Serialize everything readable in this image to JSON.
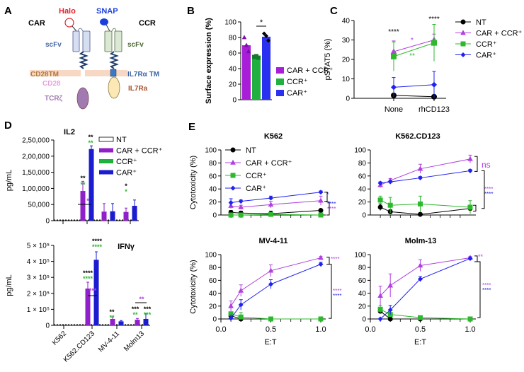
{
  "panel_labels": {
    "a": "A",
    "b": "B",
    "c": "C",
    "d": "D",
    "e": "E"
  },
  "diagram": {
    "halo": "Halo",
    "snap": "SNAP",
    "car": "CAR",
    "ccr": "CCR",
    "scfv_car": "scFv",
    "scfv_ccr": "scFv",
    "cd28tm": "CD28TM",
    "il7ra_tm": "IL7Rα TM",
    "cd28": "CD28",
    "il7ra": "IL7Ra",
    "tcrz": "TCRζ",
    "colors": {
      "halo": "#e8202a",
      "snap": "#1a3ee0",
      "scfv_car": "#4a6aa8",
      "scfv_ccr": "#4e6a3a",
      "cd28tm": "#b8783a",
      "il7ra_tm": "#3a64a8",
      "cd28": "#e8a0e0",
      "il7ra": "#a8502a",
      "tcrz": "#a07ab0"
    }
  },
  "chart_data": [
    {
      "id": "B",
      "type": "bar",
      "title": "",
      "ylabel": "Surface expression (%)",
      "xlabel": "",
      "ylim": [
        0,
        100
      ],
      "yticks": [
        0,
        20,
        40,
        60,
        80,
        100
      ],
      "yticklabels": [
        "0",
        "20",
        "40",
        "60",
        "80",
        "100"
      ],
      "categories": [
        "CAR + CCR⁺",
        "CCR⁺",
        "CAR⁺"
      ],
      "values": [
        70,
        55,
        81
      ],
      "points": [
        [
          80,
          70,
          62
        ],
        [
          55,
          56,
          54
        ],
        [
          85,
          82,
          76
        ]
      ],
      "colors": [
        "#a81ed8",
        "#1fb040",
        "#2a30f0"
      ],
      "legend": [
        "CAR + CCR⁺",
        "CCR⁺",
        "CAR⁺"
      ],
      "legend_position": "right",
      "significance": [
        {
          "between": [
            "CCR⁺",
            "CAR⁺"
          ],
          "text": "*"
        }
      ]
    },
    {
      "id": "C",
      "type": "line",
      "ylabel": "pSTAT5 (%)",
      "xlabel": "",
      "ylim": [
        0,
        40
      ],
      "yticks": [
        0,
        10,
        20,
        30,
        40
      ],
      "yticklabels": [
        "0",
        "10",
        "20",
        "30",
        "40"
      ],
      "categories": [
        "None",
        "rhCD123"
      ],
      "series": [
        {
          "name": "NT",
          "marker": "circle",
          "color": "#000000",
          "values": [
            1.5,
            0.8
          ],
          "errors": [
            1,
            0.5
          ]
        },
        {
          "name": "CAR + CCR⁺",
          "marker": "triangle",
          "color": "#b040e0",
          "values": [
            24,
            30
          ],
          "errors": [
            5.5,
            3
          ]
        },
        {
          "name": "CCR⁺",
          "marker": "square",
          "color": "#2db82d",
          "values": [
            21.5,
            28.5
          ],
          "errors": [
            7.5,
            9.5
          ]
        },
        {
          "name": "CAR⁺",
          "marker": "diamond",
          "color": "#2020f0",
          "values": [
            5.7,
            7
          ],
          "errors": [
            5,
            6.8
          ]
        }
      ],
      "legend_position": "right",
      "annotations": [
        {
          "text": "****",
          "color": "#000000"
        },
        {
          "text": "****",
          "color": "#000000"
        },
        {
          "text": "*",
          "color": "#b040e0"
        },
        {
          "text": "**",
          "color": "#2db82d"
        }
      ]
    },
    {
      "id": "D-IL2",
      "type": "bar",
      "title": "IL2",
      "ylabel": "pg/mL",
      "xlabel": "",
      "ylim": [
        0,
        250000
      ],
      "yticks": [
        0,
        50000,
        100000,
        150000,
        200000,
        250000
      ],
      "yticklabels": [
        "0",
        "50,000",
        "1,00,000",
        "1,50,000",
        "2,00,000",
        "2,50,000"
      ],
      "categories": [
        "K562",
        "K562.CD123",
        "MV-4-11",
        "Molm13"
      ],
      "series": [
        {
          "name": "NT",
          "color": "#ffffff",
          "values": [
            0,
            0,
            0,
            0
          ],
          "errors": [
            0,
            0,
            0,
            0
          ]
        },
        {
          "name": "CAR + CCR⁺",
          "color": "#9020c8",
          "values": [
            0,
            92000,
            28000,
            27000
          ],
          "errors": [
            0,
            30000,
            25000,
            12000
          ]
        },
        {
          "name": "CCR⁺",
          "color": "#1fb040",
          "values": [
            0,
            0,
            0,
            0
          ],
          "errors": [
            0,
            0,
            0,
            0
          ]
        },
        {
          "name": "CAR⁺",
          "color": "#1b1bd0",
          "values": [
            0,
            222000,
            29000,
            46000
          ],
          "errors": [
            0,
            10000,
            24000,
            18000
          ]
        }
      ],
      "legend_position": "top-right",
      "annotations": [
        {
          "text": "**",
          "color": "#000000"
        },
        {
          "text": "**",
          "color": "#2db82d"
        },
        {
          "text": "**",
          "color": "#000000"
        },
        {
          "text": "**",
          "color": "#2db82d"
        },
        {
          "text": "*",
          "color": "#b040e0"
        },
        {
          "text": "*",
          "color": "#000000"
        },
        {
          "text": "*",
          "color": "#2db82d"
        }
      ]
    },
    {
      "id": "D-IFNg",
      "type": "bar",
      "title": "IFNγ",
      "ylabel": "pg/mL",
      "xlabel": "",
      "ylim": [
        0,
        500000
      ],
      "yticks": [
        0,
        100000,
        200000,
        300000,
        400000,
        500000
      ],
      "yticklabels": [
        "0",
        "1 × 10⁵",
        "2 × 10⁵",
        "3 × 10⁵",
        "4 × 10⁵",
        "5 × 10⁵"
      ],
      "categories": [
        "K562",
        "K562.CD123",
        "MV-4-11",
        "Molm13"
      ],
      "series": [
        {
          "name": "NT",
          "color": "#ffffff",
          "values": [
            0,
            0,
            2000,
            0
          ],
          "errors": [
            0,
            0,
            0,
            0
          ]
        },
        {
          "name": "CAR + CCR⁺",
          "color": "#9020c8",
          "values": [
            0,
            230000,
            40000,
            35000
          ],
          "errors": [
            0,
            40000,
            12000,
            8000
          ]
        },
        {
          "name": "CCR⁺",
          "color": "#1fb040",
          "values": [
            0,
            0,
            0,
            0
          ],
          "errors": [
            0,
            0,
            0,
            0
          ]
        },
        {
          "name": "CAR⁺",
          "color": "#1b1bd0",
          "values": [
            0,
            410000,
            25000,
            40000
          ],
          "errors": [
            0,
            50000,
            5000,
            35000
          ]
        }
      ],
      "annotations": [
        {
          "text": "****",
          "color": "#000000"
        },
        {
          "text": "****",
          "color": "#2db82d"
        },
        {
          "text": "****",
          "color": "#000000"
        },
        {
          "text": "****",
          "color": "#2db82d"
        },
        {
          "text": "***",
          "color": "#b040e0"
        },
        {
          "text": "**",
          "color": "#000000"
        },
        {
          "text": "**",
          "color": "#2db82d"
        },
        {
          "text": "***",
          "color": "#000000"
        },
        {
          "text": "**",
          "color": "#2db82d"
        },
        {
          "text": "***",
          "color": "#000000"
        },
        {
          "text": "***",
          "color": "#2db82d"
        },
        {
          "text": "**",
          "color": "#b040e0"
        }
      ]
    },
    {
      "id": "E-K562",
      "type": "line",
      "title": "K562",
      "ylabel": "Cytotoxicity (%)",
      "xlabel": "",
      "x": [
        0.1,
        0.2,
        0.5,
        1.0
      ],
      "xlim": [
        0,
        1.05
      ],
      "ylim": [
        0,
        100
      ],
      "yticks": [
        0,
        20,
        40,
        60,
        80,
        100
      ],
      "yticklabels": [
        "0",
        "20",
        "40",
        "60",
        "80",
        "100"
      ],
      "series": [
        {
          "name": "NT",
          "marker": "circle",
          "color": "#000000",
          "values": [
            4,
            3,
            2,
            7
          ],
          "errors": [
            3,
            3,
            4,
            2
          ]
        },
        {
          "name": "CAR + CCR⁺",
          "marker": "triangle",
          "color": "#b040e0",
          "values": [
            14,
            12,
            16,
            22
          ],
          "errors": [
            4,
            3,
            5,
            7
          ]
        },
        {
          "name": "CCR⁺",
          "marker": "square",
          "color": "#2db82d",
          "values": [
            0,
            0,
            1,
            0
          ],
          "errors": [
            1,
            1,
            1,
            1
          ]
        },
        {
          "name": "CAR⁺",
          "marker": "diamond",
          "color": "#2020f0",
          "values": [
            19,
            21,
            26,
            35
          ],
          "errors": [
            6,
            2,
            3,
            2
          ]
        }
      ],
      "legend_position": "top-left",
      "annotations": [
        {
          "text": "*",
          "color": "#2020f0"
        },
        {
          "text": "****",
          "color": "#2020f0"
        },
        {
          "text": "****",
          "color": "#b040e0"
        }
      ]
    },
    {
      "id": "E-K562CD123",
      "type": "line",
      "title": "K562.CD123",
      "ylabel": "",
      "xlabel": "",
      "x": [
        0.1,
        0.2,
        0.5,
        1.0
      ],
      "xlim": [
        0,
        1.05
      ],
      "ylim": [
        0,
        100
      ],
      "yticks": [
        0,
        20,
        40,
        60,
        80,
        100
      ],
      "yticklabels": [
        "0",
        "20",
        "40",
        "60",
        "80",
        "100"
      ],
      "series": [
        {
          "name": "NT",
          "marker": "circle",
          "color": "#000000",
          "values": [
            12,
            5,
            1,
            10
          ],
          "errors": [
            5,
            3,
            2,
            4
          ]
        },
        {
          "name": "CAR + CCR⁺",
          "marker": "triangle",
          "color": "#b040e0",
          "values": [
            46,
            53,
            71,
            86
          ],
          "errors": [
            4,
            3,
            7,
            6
          ]
        },
        {
          "name": "CCR⁺",
          "marker": "square",
          "color": "#2db82d",
          "values": [
            23,
            15,
            17,
            12
          ],
          "errors": [
            6,
            12,
            12,
            10
          ]
        },
        {
          "name": "CAR⁺",
          "marker": "diamond",
          "color": "#2020f0",
          "values": [
            49,
            51,
            57,
            68
          ],
          "errors": [
            2,
            2,
            2,
            2
          ]
        }
      ],
      "annotations": [
        {
          "text": "ns",
          "color": "#b040e0"
        },
        {
          "text": "****",
          "color": "#b040e0"
        },
        {
          "text": "****",
          "color": "#2020f0"
        }
      ]
    },
    {
      "id": "E-MV411",
      "type": "line",
      "title": "MV-4-11",
      "ylabel": "Cytotoxicity (%)",
      "xlabel": "E:T",
      "x": [
        0.1,
        0.2,
        0.5,
        1.0
      ],
      "xlim": [
        0,
        1.05
      ],
      "ylim": [
        0,
        100
      ],
      "xticks": [
        0,
        0.5,
        1.0
      ],
      "xticklabels": [
        "0.0",
        "0.5",
        "1.0"
      ],
      "yticks": [
        0,
        20,
        40,
        60,
        80,
        100
      ],
      "yticklabels": [
        "0",
        "20",
        "40",
        "60",
        "80",
        "100"
      ],
      "series": [
        {
          "name": "NT",
          "marker": "circle",
          "color": "#000000",
          "values": [
            5,
            0,
            0,
            0
          ],
          "errors": [
            2,
            1,
            1,
            1
          ]
        },
        {
          "name": "CAR + CCR⁺",
          "marker": "triangle",
          "color": "#b040e0",
          "values": [
            20,
            44,
            75,
            95
          ],
          "errors": [
            8,
            9,
            9,
            2
          ]
        },
        {
          "name": "CCR⁺",
          "marker": "square",
          "color": "#2db82d",
          "values": [
            8,
            3,
            0,
            0
          ],
          "errors": [
            3,
            7,
            1,
            1
          ]
        },
        {
          "name": "CAR⁺",
          "marker": "diamond",
          "color": "#2020f0",
          "values": [
            1,
            22,
            54,
            85
          ],
          "errors": [
            5,
            8,
            7,
            3
          ]
        }
      ],
      "annotations": [
        {
          "text": "****",
          "color": "#b040e0"
        },
        {
          "text": "****",
          "color": "#b040e0"
        },
        {
          "text": "****",
          "color": "#2020f0"
        }
      ]
    },
    {
      "id": "E-Molm13",
      "type": "line",
      "title": "Molm-13",
      "ylabel": "",
      "xlabel": "E:T",
      "x": [
        0.1,
        0.2,
        0.5,
        1.0
      ],
      "xlim": [
        0,
        1.05
      ],
      "ylim": [
        0,
        100
      ],
      "xticks": [
        0,
        0.5,
        1.0
      ],
      "xticklabels": [
        "0.0",
        "0.5",
        "1.0"
      ],
      "yticks": [
        0,
        20,
        40,
        60,
        80,
        100
      ],
      "yticklabels": [
        "0",
        "20",
        "40",
        "60",
        "80",
        "100"
      ],
      "series": [
        {
          "name": "NT",
          "marker": "circle",
          "color": "#000000",
          "values": [
            12,
            0,
            0,
            0
          ],
          "errors": [
            2,
            1,
            1,
            1
          ]
        },
        {
          "name": "CAR + CCR⁺",
          "marker": "triangle",
          "color": "#b040e0",
          "values": [
            36,
            52,
            83,
            95
          ],
          "errors": [
            15,
            18,
            9,
            2
          ]
        },
        {
          "name": "CCR⁺",
          "marker": "square",
          "color": "#2db82d",
          "values": [
            15,
            7,
            2,
            0
          ],
          "errors": [
            6,
            3,
            2,
            1
          ]
        },
        {
          "name": "CAR⁺",
          "marker": "diamond",
          "color": "#2020f0",
          "values": [
            0,
            14,
            62,
            94
          ],
          "errors": [
            1,
            7,
            4,
            2
          ]
        }
      ],
      "annotations": [
        {
          "text": "**",
          "color": "#b040e0"
        },
        {
          "text": "****",
          "color": "#b040e0"
        },
        {
          "text": "****",
          "color": "#2020f0"
        }
      ]
    }
  ]
}
